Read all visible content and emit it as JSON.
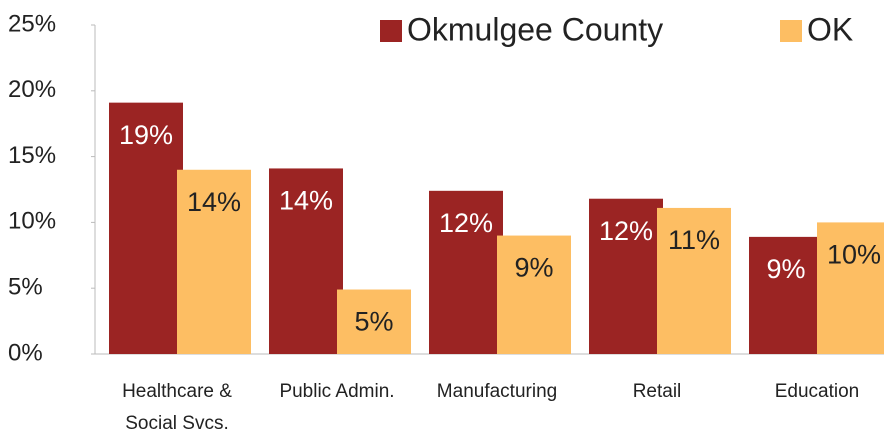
{
  "chart_data": {
    "type": "bar",
    "categories": [
      "Healthcare & Social Svcs.",
      "Public Admin.",
      "Manufacturing",
      "Retail",
      "Education"
    ],
    "series": [
      {
        "name": "Okmulgee County",
        "color": "#9b2423",
        "values": [
          19.1,
          14.1,
          12.4,
          11.8,
          8.9
        ],
        "value_labels": [
          "19%",
          "14%",
          "12%",
          "12%",
          "9%"
        ]
      },
      {
        "name": "OK",
        "color": "#fdbe63",
        "values": [
          14.0,
          4.9,
          9.0,
          11.1,
          10.0
        ],
        "value_labels": [
          "14%",
          "5%",
          "9%",
          "11%",
          "10%"
        ]
      }
    ],
    "ylim": [
      0,
      25
    ],
    "yticks": [
      {
        "value": 0,
        "label": "0%"
      },
      {
        "value": 5,
        "label": "5%"
      },
      {
        "value": 10,
        "label": "10%"
      },
      {
        "value": 15,
        "label": "15%"
      },
      {
        "value": 20,
        "label": "20%"
      },
      {
        "value": 25,
        "label": "25%"
      }
    ],
    "legend": "top-right",
    "grid": false
  }
}
